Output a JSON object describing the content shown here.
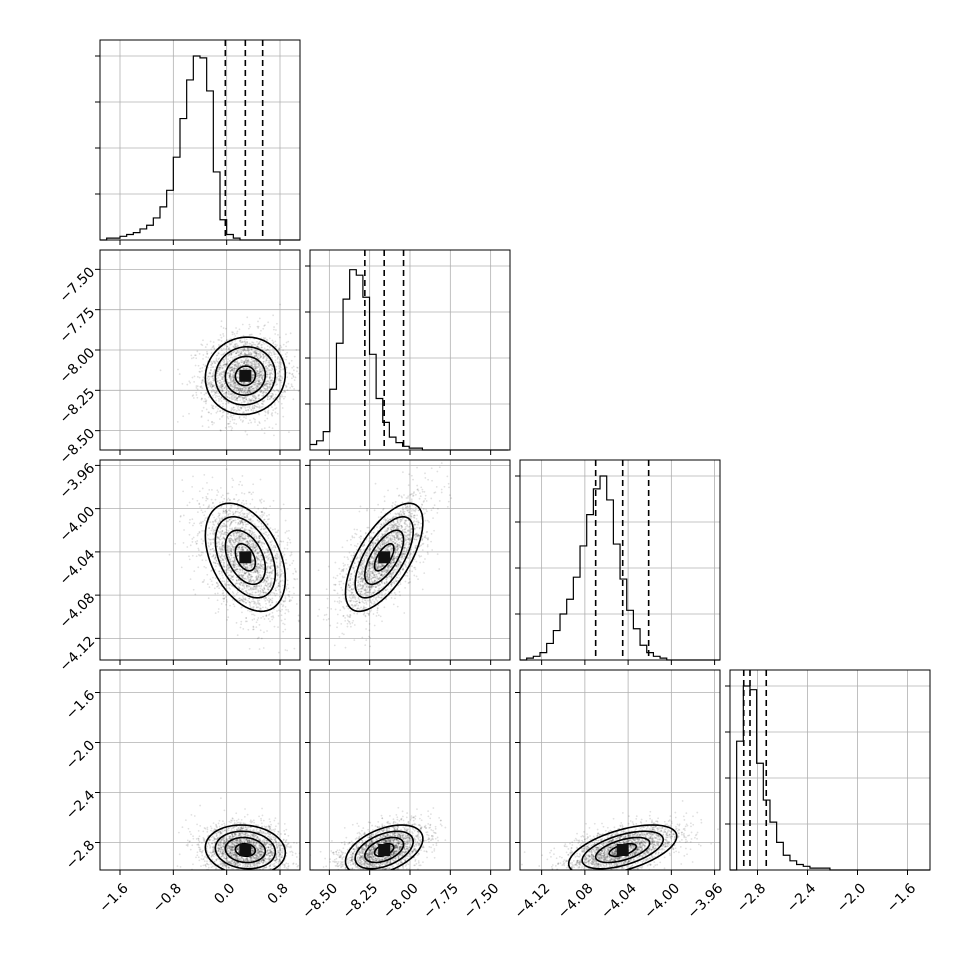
{
  "chart_data": {
    "type": "corner",
    "grid": true,
    "params": [
      {
        "id": "p0",
        "range": [
          -1.9,
          1.1
        ],
        "ticks": [
          {
            "v": -1.6,
            "label": "−1.6"
          },
          {
            "v": -0.8,
            "label": "−0.8"
          },
          {
            "v": 0.0,
            "label": "0.0"
          },
          {
            "v": 0.8,
            "label": "0.8"
          }
        ],
        "quantiles": [
          -0.02,
          0.28,
          0.54
        ],
        "hist": {
          "start": -1.9,
          "width": 0.1,
          "counts": [
            0,
            0.01,
            0.01,
            0.02,
            0.03,
            0.04,
            0.06,
            0.08,
            0.12,
            0.18,
            0.27,
            0.45,
            0.66,
            0.87,
            1.0,
            0.99,
            0.81,
            0.37,
            0.11,
            0.03,
            0.01,
            0,
            0,
            0,
            0,
            0,
            0,
            0,
            0,
            0
          ]
        }
      },
      {
        "id": "p1",
        "range": [
          -8.62,
          -7.38
        ],
        "ticks": [
          {
            "v": -8.5,
            "label": "−8.50"
          },
          {
            "v": -8.25,
            "label": "−8.25"
          },
          {
            "v": -8.0,
            "label": "−8.00"
          },
          {
            "v": -7.75,
            "label": "−7.75"
          },
          {
            "v": -7.5,
            "label": "−7.50"
          }
        ],
        "quantiles": [
          -8.28,
          -8.16,
          -8.04
        ],
        "hist": {
          "start": -8.62,
          "width": 0.041,
          "counts": [
            0.03,
            0.05,
            0.1,
            0.33,
            0.58,
            0.82,
            0.98,
            0.95,
            0.83,
            0.52,
            0.28,
            0.15,
            0.07,
            0.04,
            0.02,
            0.01,
            0.01,
            0,
            0,
            0,
            0,
            0,
            0,
            0,
            0,
            0,
            0,
            0,
            0,
            0
          ]
        }
      },
      {
        "id": "p2",
        "range": [
          -4.14,
          -3.955
        ],
        "ticks": [
          {
            "v": -4.12,
            "label": "−4.12"
          },
          {
            "v": -4.08,
            "label": "−4.08"
          },
          {
            "v": -4.04,
            "label": "−4.04"
          },
          {
            "v": -4.0,
            "label": "−4.00"
          },
          {
            "v": -3.96,
            "label": "−3.96"
          }
        ],
        "quantiles": [
          -4.07,
          -4.045,
          -4.021
        ],
        "hist": {
          "start": -4.14,
          "width": 0.00617,
          "counts": [
            0,
            0.01,
            0.02,
            0.04,
            0.09,
            0.16,
            0.25,
            0.33,
            0.45,
            0.62,
            0.79,
            0.93,
            1.0,
            0.87,
            0.63,
            0.44,
            0.27,
            0.17,
            0.08,
            0.04,
            0.02,
            0.01,
            0,
            0,
            0,
            0,
            0,
            0,
            0,
            0
          ]
        }
      },
      {
        "id": "p3",
        "range": [
          -3.02,
          -1.42
        ],
        "ticks": [
          {
            "v": -2.8,
            "label": "−2.8"
          },
          {
            "v": -2.4,
            "label": "−2.4"
          },
          {
            "v": -2.0,
            "label": "−2.0"
          },
          {
            "v": -1.6,
            "label": "−1.6"
          }
        ],
        "quantiles": [
          -2.91,
          -2.86,
          -2.73
        ],
        "hist": {
          "start": -3.02,
          "width": 0.0533,
          "counts": [
            0.0,
            0.7,
            1.0,
            0.98,
            0.58,
            0.38,
            0.26,
            0.15,
            0.08,
            0.05,
            0.03,
            0.02,
            0.01,
            0.01,
            0.01,
            0,
            0,
            0,
            0,
            0,
            0,
            0,
            0,
            0,
            0,
            0,
            0,
            0,
            0,
            0
          ]
        }
      }
    ],
    "correlations": {
      "1,0": 0.05,
      "2,0": -0.4,
      "2,1": 0.65,
      "3,0": -0.1,
      "3,1": 0.45,
      "3,2": 0.55
    },
    "means": [
      0.28,
      -8.16,
      -4.045,
      -2.86
    ],
    "sds": [
      0.3,
      0.12,
      0.025,
      0.1
    ],
    "contour_levels_sigma": [
      0.5,
      1.0,
      1.5,
      2.0
    ],
    "scatter_points_per_panel": 2400
  }
}
